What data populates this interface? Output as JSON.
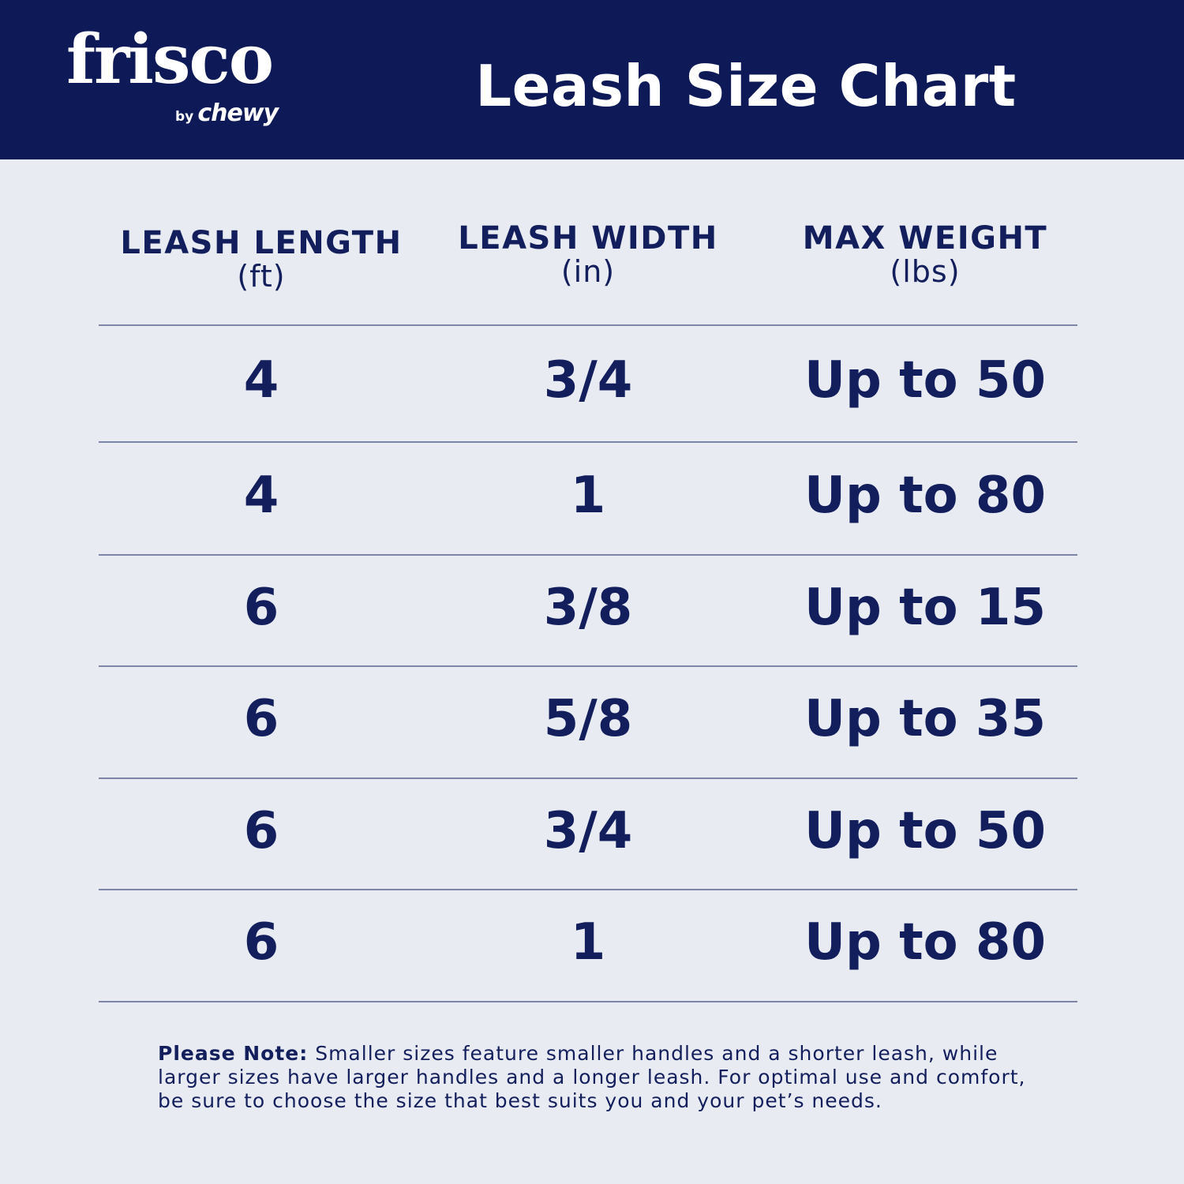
{
  "brand": {
    "logo_text": "frisco",
    "by": "by",
    "parent": "chewy"
  },
  "title": "Leash Size Chart",
  "colors": {
    "header_bg": "#0e1a58",
    "page_bg": "#e8ebf2",
    "text": "#131f5c"
  },
  "columns": [
    {
      "label": "LEASH LENGTH",
      "unit": "(ft)"
    },
    {
      "label": "LEASH WIDTH",
      "unit": "(in)"
    },
    {
      "label": "MAX WEIGHT",
      "unit": "(lbs)"
    }
  ],
  "rows": [
    [
      "4",
      "3/4",
      "Up to 50"
    ],
    [
      "4",
      "1",
      "Up to 80"
    ],
    [
      "6",
      "3/8",
      "Up to 15"
    ],
    [
      "6",
      "5/8",
      "Up to 35"
    ],
    [
      "6",
      "3/4",
      "Up to 50"
    ],
    [
      "6",
      "1",
      "Up to 80"
    ]
  ],
  "note": {
    "label": "Please Note:",
    "text": " Smaller sizes feature smaller handles and a shorter leash, while larger sizes have larger handles and a longer leash. For optimal use and comfort, be sure to choose the size that best suits you and your pet’s needs."
  }
}
